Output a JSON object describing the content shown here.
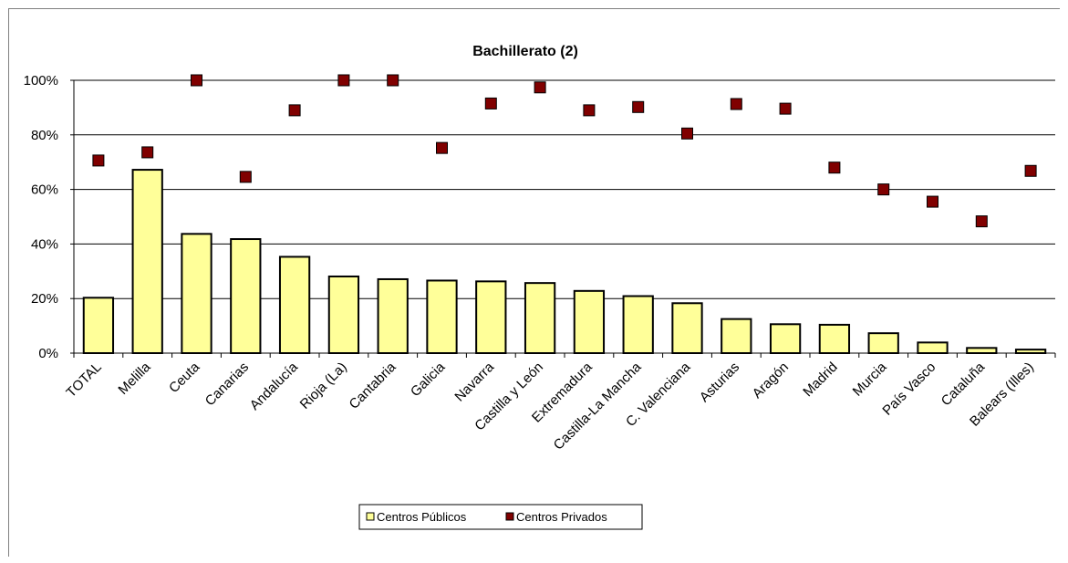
{
  "chart_data": {
    "type": "bar",
    "title": "Bachillerato (2)",
    "xlabel": "",
    "ylabel": "",
    "ylim": [
      0,
      100
    ],
    "yticks": [
      0,
      20,
      40,
      60,
      80,
      100
    ],
    "ytick_suffix": "%",
    "grid": true,
    "legend_position": "bottom",
    "categories": [
      "TOTAL",
      "Melilla",
      "Ceuta",
      "Canarias",
      "Andalucía",
      "Rioja (La)",
      "Cantabria",
      "Galicia",
      "Navarra",
      "Castilla y León",
      "Extremadura",
      "Castilla-La Mancha",
      "C. Valenciana",
      "Asturias",
      "Aragón",
      "Madrid",
      "Murcia",
      "País Vasco",
      "Cataluña",
      "Balears (Illes)"
    ],
    "series": [
      {
        "name": "Centros Públicos",
        "kind": "bar",
        "color": "#ffff99",
        "values": [
          20.3,
          67.2,
          43.7,
          41.8,
          35.3,
          28.1,
          27.1,
          26.6,
          26.3,
          25.7,
          22.8,
          20.9,
          18.3,
          12.5,
          10.6,
          10.4,
          7.3,
          3.9,
          1.9,
          1.3
        ]
      },
      {
        "name": "Centros Privados",
        "kind": "marker",
        "color": "#800000",
        "values": [
          70.6,
          73.6,
          100,
          64.6,
          89.0,
          100,
          100,
          75.2,
          91.5,
          97.4,
          89.0,
          90.2,
          80.5,
          91.3,
          89.6,
          68.0,
          60.0,
          55.5,
          48.3,
          66.8
        ]
      }
    ]
  }
}
